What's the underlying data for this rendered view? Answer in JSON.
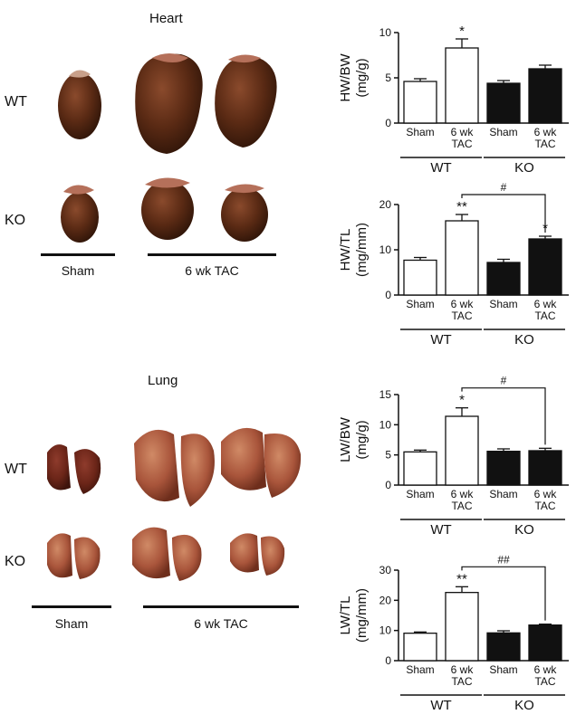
{
  "photos": {
    "heart": {
      "title": "Heart",
      "rows": [
        "WT",
        "KO"
      ],
      "groups": [
        "Sham",
        "6 wk TAC"
      ]
    },
    "lung": {
      "title": "Lung",
      "rows": [
        "WT",
        "KO"
      ],
      "groups": [
        "Sham",
        "6 wk TAC"
      ]
    }
  },
  "colors": {
    "wt_bar": "#ffffff",
    "ko_bar": "#111111",
    "heart_tissue": "#5a2a14",
    "lung_tissue": "#a9553b"
  },
  "chart_data": [
    {
      "type": "bar",
      "ylabel": "HW/BW\n(mg/g)",
      "ylim": [
        0,
        10
      ],
      "yticks": [
        0,
        5,
        10
      ],
      "categories": [
        "Sham",
        "6 wk\nTAC",
        "Sham",
        "6 wk\nTAC"
      ],
      "groups": [
        "WT",
        "KO"
      ],
      "values": [
        4.6,
        8.3,
        4.4,
        6.0
      ],
      "errors": [
        0.3,
        1.0,
        0.3,
        0.4
      ],
      "annotations": [
        "",
        "*",
        "",
        ""
      ],
      "brackets": []
    },
    {
      "type": "bar",
      "ylabel": "HW/TL\n(mg/mm)",
      "ylim": [
        0,
        20
      ],
      "yticks": [
        0,
        10,
        20
      ],
      "categories": [
        "Sham",
        "6 wk\nTAC",
        "Sham",
        "6 wk\nTAC"
      ],
      "groups": [
        "WT",
        "KO"
      ],
      "values": [
        7.7,
        16.4,
        7.2,
        12.4
      ],
      "errors": [
        0.6,
        1.4,
        0.7,
        0.6
      ],
      "annotations": [
        "",
        "**",
        "",
        "*"
      ],
      "brackets": [
        {
          "from": 1,
          "to": 3,
          "label": "#"
        }
      ]
    },
    {
      "type": "bar",
      "ylabel": "LW/BW\n(mg/g)",
      "ylim": [
        0,
        15
      ],
      "yticks": [
        0,
        5,
        10,
        15
      ],
      "categories": [
        "Sham",
        "6 wk\nTAC",
        "Sham",
        "6 wk\nTAC"
      ],
      "groups": [
        "WT",
        "KO"
      ],
      "values": [
        5.5,
        11.4,
        5.6,
        5.7
      ],
      "errors": [
        0.3,
        1.4,
        0.4,
        0.4
      ],
      "annotations": [
        "",
        "*",
        "",
        ""
      ],
      "brackets": [
        {
          "from": 1,
          "to": 3,
          "label": "#"
        }
      ]
    },
    {
      "type": "bar",
      "ylabel": "LW/TL\n(mg/mm)",
      "ylim": [
        0,
        30
      ],
      "yticks": [
        0,
        10,
        20,
        30
      ],
      "categories": [
        "Sham",
        "6 wk\nTAC",
        "Sham",
        "6 wk\nTAC"
      ],
      "groups": [
        "WT",
        "KO"
      ],
      "values": [
        9.1,
        22.6,
        9.2,
        11.8
      ],
      "errors": [
        0.4,
        1.9,
        0.7,
        0.3
      ],
      "annotations": [
        "",
        "**",
        "",
        ""
      ],
      "brackets": [
        {
          "from": 1,
          "to": 3,
          "label": "##"
        }
      ]
    }
  ]
}
